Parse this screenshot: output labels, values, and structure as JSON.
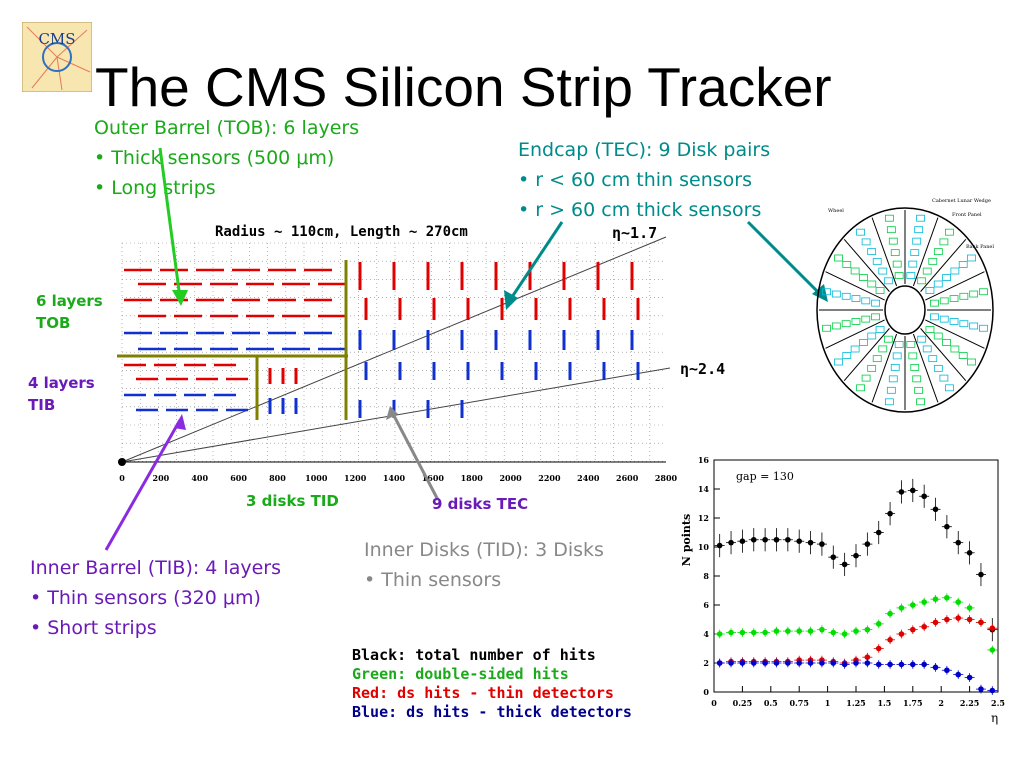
{
  "slide": {
    "title": "The CMS Silicon Strip Tracker",
    "logo_text": "CMS"
  },
  "tob": {
    "heading": "Outer Barrel (TOB): 6 layers",
    "bullet1": "• Thick sensors (500 μm)",
    "bullet2": "• Long strips"
  },
  "tec": {
    "heading": "Endcap (TEC): 9 Disk pairs",
    "bullet1": "• r < 60 cm thin sensors",
    "bullet2": "• r > 60 cm thick sensors"
  },
  "tib": {
    "heading": "Inner Barrel (TIB): 4 layers",
    "bullet1": "• Thin sensors (320 μm)",
    "bullet2": "• Short strips"
  },
  "tid": {
    "heading": "Inner Disks (TID): 3 Disks",
    "bullet1": "• Thin sensors"
  },
  "diagram": {
    "radius_label": "Radius ~ 110cm, Length ~ 270cm",
    "eta_17": "η~1.7",
    "eta_24": "η~2.4",
    "tob_label_1": "6 layers",
    "tob_label_2": "TOB",
    "tib_label_1": "4 layers",
    "tib_label_2": "TIB",
    "tid_label": "3 disks TID",
    "tec_label": "9 disks TEC",
    "x_ticks": [
      "0",
      "200",
      "400",
      "600",
      "800",
      "1000",
      "1200",
      "1400",
      "1600",
      "1800",
      "2000",
      "2200",
      "2400",
      "2600",
      "2800"
    ],
    "disk_labels": [
      "Cabernet Lunar Wedge",
      "Front Panel",
      "Back Panel",
      "Wheel"
    ]
  },
  "legend": {
    "black": "Black: total number of hits",
    "green": "Green: double-sided hits",
    "red": "Red: ds hits - thin detectors",
    "blue": "Blue: ds hits - thick detectors"
  },
  "chart_data": {
    "type": "scatter",
    "annotation": "gap = 130",
    "xlabel": "η",
    "ylabel": "N points",
    "xlim": [
      0,
      2.5
    ],
    "ylim": [
      0,
      16
    ],
    "x_ticks": [
      "0",
      "0.25",
      "0.5",
      "0.75",
      "1",
      "1.25",
      "1.5",
      "1.75",
      "2",
      "2.25",
      "2.5"
    ],
    "y_ticks": [
      "0",
      "2",
      "4",
      "6",
      "8",
      "10",
      "12",
      "14",
      "16"
    ],
    "series": [
      {
        "name": "total number of hits",
        "color": "#000000",
        "x": [
          0.05,
          0.15,
          0.25,
          0.35,
          0.45,
          0.55,
          0.65,
          0.75,
          0.85,
          0.95,
          1.05,
          1.15,
          1.25,
          1.35,
          1.45,
          1.55,
          1.65,
          1.75,
          1.85,
          1.95,
          2.05,
          2.15,
          2.25,
          2.35,
          2.45
        ],
        "y": [
          10.1,
          10.3,
          10.4,
          10.5,
          10.5,
          10.5,
          10.5,
          10.4,
          10.3,
          10.2,
          9.3,
          8.8,
          9.4,
          10.2,
          11.0,
          12.3,
          13.8,
          13.9,
          13.5,
          12.6,
          11.4,
          10.3,
          9.6,
          8.1,
          4.3
        ]
      },
      {
        "name": "double-sided hits",
        "color": "#00dd00",
        "x": [
          0.05,
          0.15,
          0.25,
          0.35,
          0.45,
          0.55,
          0.65,
          0.75,
          0.85,
          0.95,
          1.05,
          1.15,
          1.25,
          1.35,
          1.45,
          1.55,
          1.65,
          1.75,
          1.85,
          1.95,
          2.05,
          2.15,
          2.25,
          2.35,
          2.45
        ],
        "y": [
          4.0,
          4.1,
          4.1,
          4.1,
          4.1,
          4.2,
          4.2,
          4.2,
          4.2,
          4.3,
          4.1,
          4.0,
          4.2,
          4.3,
          4.7,
          5.4,
          5.8,
          6.0,
          6.2,
          6.4,
          6.5,
          6.2,
          5.8,
          4.8,
          2.9
        ]
      },
      {
        "name": "ds hits - thin detectors",
        "color": "#e00000",
        "x": [
          0.05,
          0.15,
          0.25,
          0.35,
          0.45,
          0.55,
          0.65,
          0.75,
          0.85,
          0.95,
          1.05,
          1.15,
          1.25,
          1.35,
          1.45,
          1.55,
          1.65,
          1.75,
          1.85,
          1.95,
          2.05,
          2.15,
          2.25,
          2.35,
          2.45
        ],
        "y": [
          2.0,
          2.1,
          2.1,
          2.1,
          2.1,
          2.1,
          2.1,
          2.2,
          2.2,
          2.2,
          2.1,
          2.0,
          2.2,
          2.4,
          3.0,
          3.6,
          4.0,
          4.3,
          4.5,
          4.8,
          5.0,
          5.1,
          5.0,
          4.8,
          4.4
        ]
      },
      {
        "name": "ds hits - thick detectors",
        "color": "#0000cc",
        "x": [
          0.05,
          0.15,
          0.25,
          0.35,
          0.45,
          0.55,
          0.65,
          0.75,
          0.85,
          0.95,
          1.05,
          1.15,
          1.25,
          1.35,
          1.45,
          1.55,
          1.65,
          1.75,
          1.85,
          1.95,
          2.05,
          2.15,
          2.25,
          2.35,
          2.45
        ],
        "y": [
          2.0,
          2.0,
          2.0,
          2.0,
          2.0,
          2.0,
          2.0,
          2.0,
          2.0,
          2.0,
          2.0,
          1.9,
          2.0,
          2.0,
          1.9,
          1.9,
          1.9,
          1.9,
          1.9,
          1.7,
          1.5,
          1.2,
          1.0,
          0.2,
          0.1
        ]
      }
    ]
  }
}
